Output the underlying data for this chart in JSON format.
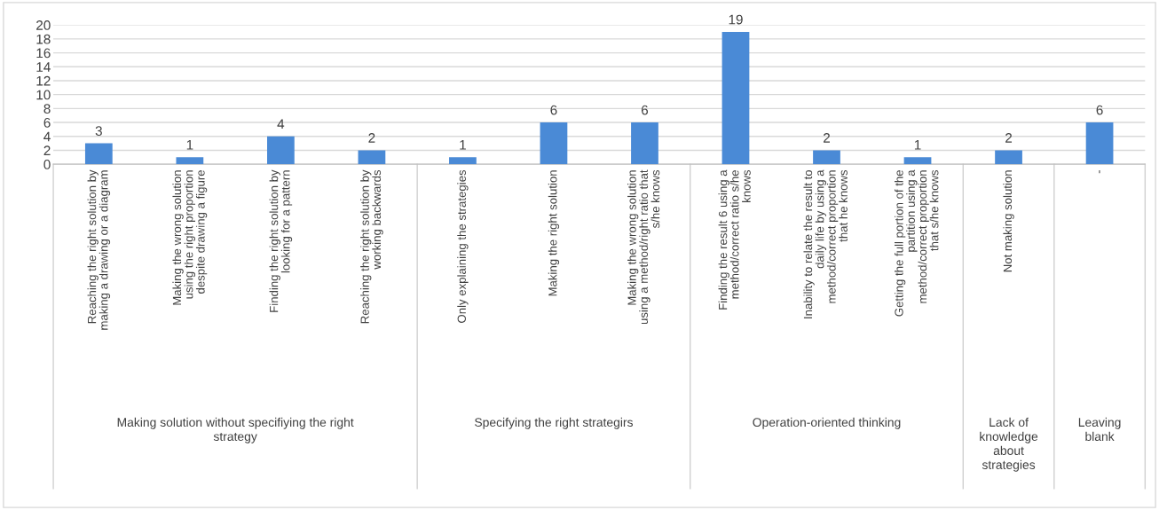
{
  "chart_data": {
    "type": "bar",
    "categories": [
      "Reaching the right solution by\nmaking a drawing or a diagram",
      "Making the wrong solution\nusing the right proportion\ndespite drawing a figure",
      "Finding the right solution by\nlooking for a pattern",
      "Reaching the right solution by\nworking backwards",
      "Only explaining the strategies",
      "Making the right solution",
      "Making the wrong solution\nusing a method/right ratio that\ns/he knows",
      "Finding the result 6 using a\nmethod/correct ratio s/he\nknows",
      "Inability to relate the result to\ndaily life by using a\nmethod/correct proportion\nthat he knows",
      "Getting the full portion of the\npartition using a\nmethod/correct proportion\nthat s/he knows",
      "Not making solution",
      "-"
    ],
    "values": [
      3,
      1,
      4,
      2,
      1,
      6,
      6,
      19,
      2,
      1,
      2,
      6
    ],
    "color": "#4a8ad6",
    "ylim": [
      0,
      20
    ],
    "yticks": [
      0,
      2,
      4,
      6,
      8,
      10,
      12,
      14,
      16,
      18,
      20
    ],
    "grid": "y",
    "data_labels": true,
    "annotations": [
      "Making solution without specifiying the right\nstrategy",
      "Specifying the right strategirs",
      "Operation-oriented thinking",
      "Lack of\nknowledge\nabout\nstrategies",
      "Leaving\nblank"
    ]
  }
}
